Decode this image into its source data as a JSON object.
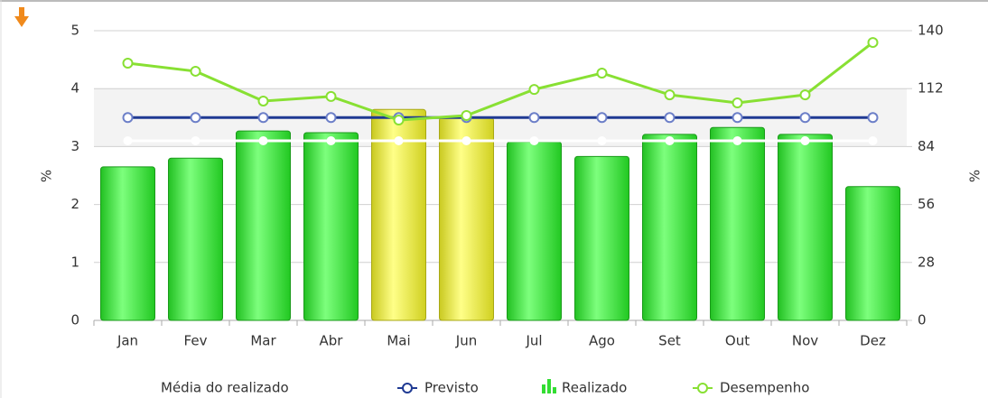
{
  "chart_data": {
    "type": "bar_line",
    "categories": [
      "Jan",
      "Fev",
      "Mar",
      "Abr",
      "Mai",
      "Jun",
      "Jul",
      "Ago",
      "Set",
      "Out",
      "Nov",
      "Dez"
    ],
    "ylabel": "%",
    "y2label": "%",
    "ylim": [
      0,
      5
    ],
    "yticks": [
      0,
      1,
      2,
      3,
      4,
      5
    ],
    "y2lim": [
      0,
      140
    ],
    "y2ticks": [
      0,
      28,
      56,
      84,
      112,
      140
    ],
    "plot_band": [
      3,
      4
    ],
    "plot_band_color": "#f3f3f3",
    "grid": true,
    "series": [
      {
        "name": "Média do realizado",
        "type": "line",
        "color": "#ffffff",
        "values": [
          3.1,
          3.1,
          3.1,
          3.1,
          3.1,
          3.1,
          3.1,
          3.1,
          3.1,
          3.1,
          3.1,
          3.1
        ]
      },
      {
        "name": "Previsto",
        "type": "line",
        "color": "#1f3a93",
        "values": [
          3.5,
          3.5,
          3.5,
          3.5,
          3.5,
          3.5,
          3.5,
          3.5,
          3.5,
          3.5,
          3.5,
          3.5
        ]
      },
      {
        "name": "Realizado",
        "type": "bar",
        "color": "#33dd33",
        "colors": [
          "#33dd33",
          "#33dd33",
          "#33dd33",
          "#33dd33",
          "#e6e630",
          "#e6e630",
          "#33dd33",
          "#33dd33",
          "#33dd33",
          "#33dd33",
          "#33dd33",
          "#33dd33"
        ],
        "values": [
          2.65,
          2.8,
          3.27,
          3.24,
          3.64,
          3.5,
          3.08,
          2.83,
          3.21,
          3.33,
          3.21,
          2.31
        ]
      },
      {
        "name": "Desempenho",
        "type": "line",
        "axis": "y2",
        "color": "#88e033",
        "values": [
          124.3,
          120.4,
          106,
          108.2,
          96.8,
          99,
          111.6,
          119.5,
          109,
          105.1,
          109,
          134.3
        ]
      }
    ]
  }
}
